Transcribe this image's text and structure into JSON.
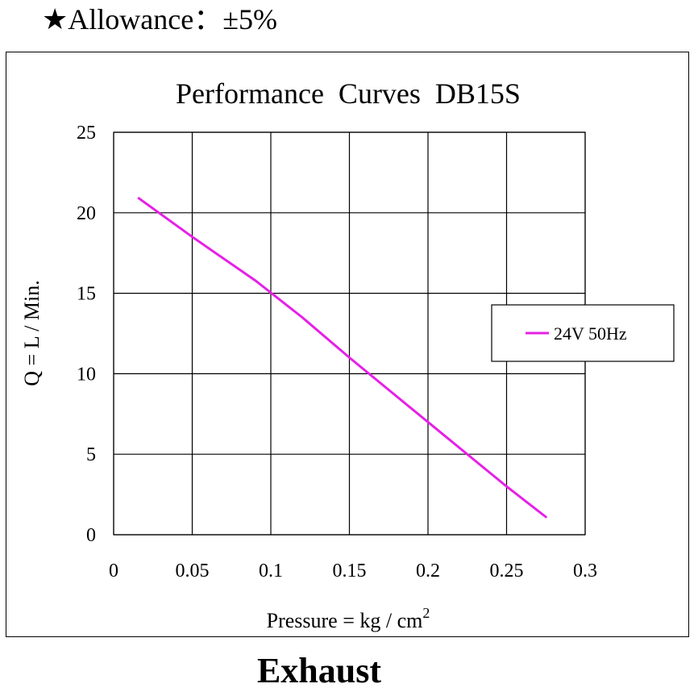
{
  "header": {
    "allowance_text": "★Allowance：±5%"
  },
  "footer": {
    "caption": "Exhaust"
  },
  "colors": {
    "series_line": "#e620e6",
    "grid": "#000000"
  },
  "chart_data": {
    "type": "line",
    "title": "Performance  Curves  DB15S",
    "xlabel": "Pressure = kg / cm",
    "xlabel_superscript": "2",
    "ylabel": "Q = L / Min.",
    "xlim": [
      0,
      0.3
    ],
    "ylim": [
      0,
      25
    ],
    "x_ticks": [
      0,
      0.05,
      0.1,
      0.15,
      0.2,
      0.25,
      0.3
    ],
    "x_tick_labels": [
      "0",
      "0.05",
      "0.1",
      "0.15",
      "0.2",
      "0.25",
      "0.3"
    ],
    "y_ticks": [
      0,
      5,
      10,
      15,
      20,
      25
    ],
    "y_tick_labels": [
      "0",
      "5",
      "10",
      "15",
      "20",
      "25"
    ],
    "grid": true,
    "legend_position": "right",
    "series": [
      {
        "name": "24V 50Hz",
        "color": "#e620e6",
        "x": [
          0.016,
          0.05,
          0.09,
          0.12,
          0.15,
          0.2,
          0.25,
          0.275
        ],
        "y": [
          20.9,
          18.5,
          15.8,
          13.5,
          11.0,
          7.0,
          3.0,
          1.1
        ]
      }
    ]
  }
}
